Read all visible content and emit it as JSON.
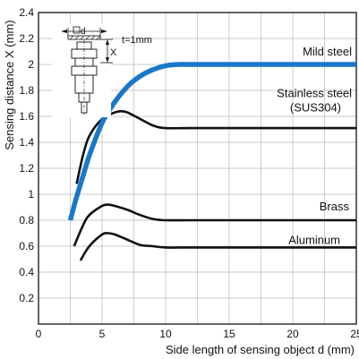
{
  "chart_data": {
    "type": "line",
    "xlabel": "Side length of sensing object d (mm)",
    "ylabel": "Sensing distance X (mm)",
    "xlim": [
      0,
      25
    ],
    "ylim": [
      0,
      2.4
    ],
    "xticks": [
      "0",
      "5",
      "10",
      "15",
      "20",
      "25"
    ],
    "yticks": [
      "0.2",
      "0.4",
      "0.6",
      "0.8",
      "1",
      "1.2",
      "1.4",
      "1.6",
      "1.8",
      "2",
      "2.2",
      "2.4"
    ],
    "grid": true,
    "colors": {
      "mild_steel": "#1a78c8",
      "others": "#111111",
      "grid": "#b9b9b9"
    },
    "series": [
      {
        "name": "Mild steel",
        "x": [
          2.5,
          3,
          3.5,
          4,
          5,
          6,
          7,
          8,
          9,
          10,
          11,
          12,
          15,
          20,
          25
        ],
        "y": [
          0.8,
          0.98,
          1.14,
          1.3,
          1.55,
          1.71,
          1.83,
          1.91,
          1.96,
          1.99,
          2.0,
          2.0,
          2.0,
          2.0,
          2.0
        ]
      },
      {
        "name": "Stainless steel\n(SUS304)",
        "x": [
          3,
          3.5,
          4,
          5,
          6,
          6.5,
          7,
          8,
          9,
          10,
          12,
          15,
          20,
          25
        ],
        "y": [
          1.08,
          1.3,
          1.45,
          1.58,
          1.63,
          1.64,
          1.63,
          1.58,
          1.53,
          1.51,
          1.51,
          1.51,
          1.51,
          1.51
        ]
      },
      {
        "name": "Brass",
        "x": [
          2.8,
          3.5,
          4,
          5,
          5.5,
          6,
          7,
          8,
          9,
          10,
          12,
          15,
          20,
          25
        ],
        "y": [
          0.6,
          0.76,
          0.84,
          0.91,
          0.92,
          0.91,
          0.88,
          0.84,
          0.81,
          0.8,
          0.8,
          0.8,
          0.8,
          0.8
        ]
      },
      {
        "name": "Aluminum",
        "x": [
          3.3,
          4,
          5,
          5.5,
          6,
          7,
          8,
          9,
          10,
          12,
          15,
          20,
          25
        ],
        "y": [
          0.49,
          0.6,
          0.69,
          0.7,
          0.69,
          0.65,
          0.61,
          0.6,
          0.59,
          0.59,
          0.59,
          0.59,
          0.59
        ]
      }
    ],
    "inset": {
      "square_label": "d",
      "thickness_label": "t=1mm",
      "distance_label": "X"
    }
  }
}
